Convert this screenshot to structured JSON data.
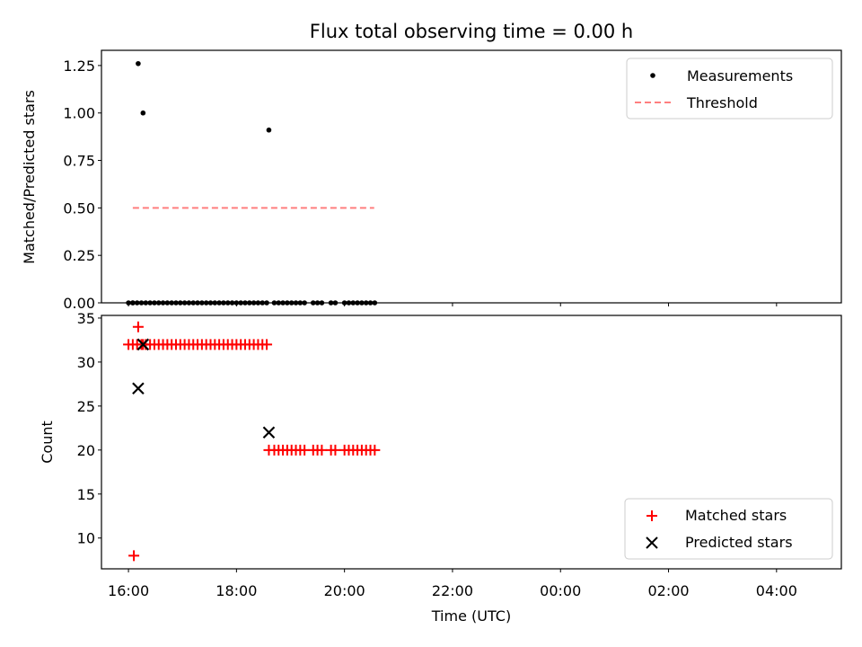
{
  "figure": {
    "title": "Flux total observing time = 0.00 h",
    "xlabel": "Time (UTC)",
    "x_tick_labels": [
      "16:00",
      "18:00",
      "20:00",
      "22:00",
      "00:00",
      "02:00",
      "04:00"
    ]
  },
  "chart_data": [
    {
      "type": "scatter",
      "title": "Flux total observing time = 0.00 h",
      "xlabel": "",
      "ylabel": "Matched/Predicted stars",
      "x_unit": "hours after 16:00 UTC",
      "xlim": [
        -0.5,
        13.2
      ],
      "ylim": [
        0,
        1.33
      ],
      "y_ticks": [
        "0.00",
        "0.25",
        "0.50",
        "0.75",
        "1.00",
        "1.25"
      ],
      "legend_position": "top-right",
      "grid": false,
      "series": [
        {
          "name": "Measurements",
          "kind": "scatter",
          "color": "#000000",
          "marker": "dot",
          "points": [
            [
              0.08,
              0.0
            ],
            [
              0.18,
              1.26
            ],
            [
              0.27,
              1.0
            ],
            [
              0.0,
              0.0
            ],
            [
              0.08,
              0.0
            ],
            [
              0.16,
              0.0
            ],
            [
              0.24,
              0.0
            ],
            [
              0.32,
              0.0
            ],
            [
              0.4,
              0.0
            ],
            [
              0.48,
              0.0
            ],
            [
              0.56,
              0.0
            ],
            [
              0.64,
              0.0
            ],
            [
              0.72,
              0.0
            ],
            [
              0.8,
              0.0
            ],
            [
              0.88,
              0.0
            ],
            [
              0.96,
              0.0
            ],
            [
              1.04,
              0.0
            ],
            [
              1.12,
              0.0
            ],
            [
              1.2,
              0.0
            ],
            [
              1.28,
              0.0
            ],
            [
              1.36,
              0.0
            ],
            [
              1.44,
              0.0
            ],
            [
              1.52,
              0.0
            ],
            [
              1.6,
              0.0
            ],
            [
              1.68,
              0.0
            ],
            [
              1.76,
              0.0
            ],
            [
              1.84,
              0.0
            ],
            [
              1.92,
              0.0
            ],
            [
              2.0,
              0.0
            ],
            [
              2.08,
              0.0
            ],
            [
              2.16,
              0.0
            ],
            [
              2.24,
              0.0
            ],
            [
              2.32,
              0.0
            ],
            [
              2.4,
              0.0
            ],
            [
              2.48,
              0.0
            ],
            [
              2.56,
              0.0
            ],
            [
              2.6,
              0.91
            ],
            [
              2.7,
              0.0
            ],
            [
              2.78,
              0.0
            ],
            [
              2.86,
              0.0
            ],
            [
              2.94,
              0.0
            ],
            [
              3.02,
              0.0
            ],
            [
              3.1,
              0.0
            ],
            [
              3.18,
              0.0
            ],
            [
              3.26,
              0.0
            ],
            [
              3.42,
              0.0
            ],
            [
              3.5,
              0.0
            ],
            [
              3.58,
              0.0
            ],
            [
              3.75,
              0.0
            ],
            [
              3.83,
              0.0
            ],
            [
              4.0,
              0.0
            ],
            [
              4.08,
              0.0
            ],
            [
              4.16,
              0.0
            ],
            [
              4.24,
              0.0
            ],
            [
              4.32,
              0.0
            ],
            [
              4.4,
              0.0
            ],
            [
              4.48,
              0.0
            ],
            [
              4.56,
              0.0
            ]
          ]
        },
        {
          "name": "Threshold",
          "kind": "line",
          "color": "#ff7f7f",
          "style": "dashed",
          "points": [
            [
              0.08,
              0.5
            ],
            [
              4.55,
              0.5
            ]
          ]
        }
      ]
    },
    {
      "type": "scatter",
      "xlabel": "Time (UTC)",
      "ylabel": "Count",
      "x_unit": "hours after 16:00 UTC",
      "xlim": [
        -0.5,
        13.2
      ],
      "ylim": [
        6.5,
        35.3
      ],
      "y_ticks": [
        "10",
        "15",
        "20",
        "25",
        "30",
        "35"
      ],
      "x_ticks": [
        "16:00",
        "18:00",
        "20:00",
        "22:00",
        "00:00",
        "02:00",
        "04:00"
      ],
      "legend_position": "bottom-right",
      "grid": false,
      "series": [
        {
          "name": "Matched stars",
          "kind": "scatter",
          "color": "#ff0000",
          "marker": "plus",
          "points": [
            [
              0.1,
              8
            ],
            [
              0.18,
              34
            ],
            [
              0.27,
              32
            ],
            [
              0.0,
              32
            ],
            [
              0.08,
              32
            ],
            [
              0.16,
              32
            ],
            [
              0.24,
              32
            ],
            [
              0.32,
              32
            ],
            [
              0.4,
              32
            ],
            [
              0.48,
              32
            ],
            [
              0.56,
              32
            ],
            [
              0.64,
              32
            ],
            [
              0.72,
              32
            ],
            [
              0.8,
              32
            ],
            [
              0.88,
              32
            ],
            [
              0.96,
              32
            ],
            [
              1.04,
              32
            ],
            [
              1.12,
              32
            ],
            [
              1.2,
              32
            ],
            [
              1.28,
              32
            ],
            [
              1.36,
              32
            ],
            [
              1.44,
              32
            ],
            [
              1.52,
              32
            ],
            [
              1.6,
              32
            ],
            [
              1.68,
              32
            ],
            [
              1.76,
              32
            ],
            [
              1.84,
              32
            ],
            [
              1.92,
              32
            ],
            [
              2.0,
              32
            ],
            [
              2.08,
              32
            ],
            [
              2.16,
              32
            ],
            [
              2.24,
              32
            ],
            [
              2.32,
              32
            ],
            [
              2.4,
              32
            ],
            [
              2.48,
              32
            ],
            [
              2.56,
              32
            ],
            [
              2.6,
              20
            ],
            [
              2.7,
              20
            ],
            [
              2.78,
              20
            ],
            [
              2.86,
              20
            ],
            [
              2.94,
              20
            ],
            [
              3.02,
              20
            ],
            [
              3.1,
              20
            ],
            [
              3.18,
              20
            ],
            [
              3.26,
              20
            ],
            [
              3.42,
              20
            ],
            [
              3.5,
              20
            ],
            [
              3.58,
              20
            ],
            [
              3.75,
              20
            ],
            [
              3.83,
              20
            ],
            [
              4.0,
              20
            ],
            [
              4.08,
              20
            ],
            [
              4.16,
              20
            ],
            [
              4.24,
              20
            ],
            [
              4.32,
              20
            ],
            [
              4.4,
              20
            ],
            [
              4.48,
              20
            ],
            [
              4.56,
              20
            ]
          ]
        },
        {
          "name": "Predicted stars",
          "kind": "scatter",
          "color": "#000000",
          "marker": "x",
          "points": [
            [
              0.18,
              27
            ],
            [
              0.27,
              32
            ],
            [
              2.6,
              22
            ]
          ]
        }
      ]
    }
  ]
}
